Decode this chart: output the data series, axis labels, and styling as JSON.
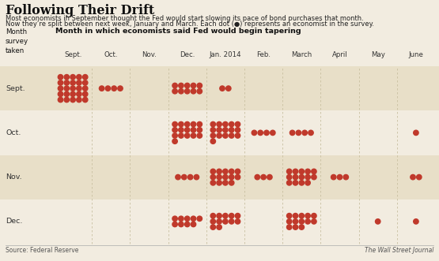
{
  "title": "Following Their Drift",
  "subtitle_line1": "Most economists in September thought the Fed would start slowing its pace of bond purchases that month.",
  "subtitle_line2": "Now they’re split between next week, January and March. Each dot (●) represents an economist in the survey.",
  "col_header": "Month in which economists said Fed would begin tapering",
  "source": "Source: Federal Reserve",
  "credit": "The Wall Street Journal",
  "columns": [
    "Sept.",
    "Oct.",
    "Nov.",
    "Dec.",
    "Jan. 2014",
    "Feb.",
    "March",
    "April",
    "May",
    "June"
  ],
  "rows": [
    "Sept.",
    "Oct.",
    "Nov.",
    "Dec."
  ],
  "dot_color": "#c0392b",
  "bg_color": "#f2ece0",
  "alt_row_color": "#e8dfc8",
  "grid_line_color": "#c8bfa0",
  "dot_counts": {
    "Sept.": {
      "Sept.": 25,
      "Oct.": 4,
      "Nov.": 0,
      "Dec.": 10,
      "Jan. 2014": 2,
      "Feb.": 0,
      "March": 0,
      "April": 0,
      "May": 0,
      "June": 0
    },
    "Oct.": {
      "Sept.": 0,
      "Oct.": 0,
      "Nov.": 0,
      "Dec.": 16,
      "Jan. 2014": 16,
      "Feb.": 4,
      "March": 4,
      "April": 0,
      "May": 0,
      "June": 1
    },
    "Nov.": {
      "Sept.": 0,
      "Oct.": 0,
      "Nov.": 0,
      "Dec.": 4,
      "Jan. 2014": 14,
      "Feb.": 3,
      "March": 14,
      "April": 3,
      "May": 0,
      "June": 2
    },
    "Dec.": {
      "Sept.": 0,
      "Oct.": 0,
      "Nov.": 0,
      "Dec.": 9,
      "Jan. 2014": 12,
      "Feb.": 0,
      "March": 13,
      "April": 0,
      "May": 1,
      "June": 1
    }
  }
}
